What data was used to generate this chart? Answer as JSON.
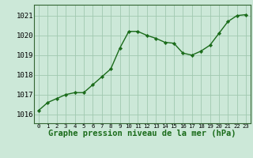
{
  "x": [
    0,
    1,
    2,
    3,
    4,
    5,
    6,
    7,
    8,
    9,
    10,
    11,
    12,
    13,
    14,
    15,
    16,
    17,
    18,
    19,
    20,
    21,
    22,
    23
  ],
  "y": [
    1016.2,
    1016.6,
    1016.8,
    1017.0,
    1017.1,
    1017.1,
    1017.5,
    1017.9,
    1018.3,
    1019.35,
    1020.2,
    1020.2,
    1020.0,
    1019.85,
    1019.65,
    1019.6,
    1019.1,
    1019.0,
    1019.2,
    1019.5,
    1020.1,
    1020.7,
    1021.0,
    1021.05
  ],
  "line_color": "#1a6b1a",
  "marker": "D",
  "marker_size": 2.2,
  "bg_color": "#cce8d8",
  "grid_color": "#a0c8b0",
  "xlabel": "Graphe pression niveau de la mer (hPa)",
  "xlabel_fontsize": 7.5,
  "ylabel_ticks": [
    1016,
    1017,
    1018,
    1019,
    1020,
    1021
  ],
  "xlim": [
    -0.5,
    23.5
  ],
  "ylim": [
    1015.55,
    1021.55
  ],
  "ytick_fontsize": 6.5,
  "xtick_fontsize": 5.2,
  "line_width": 1.0
}
